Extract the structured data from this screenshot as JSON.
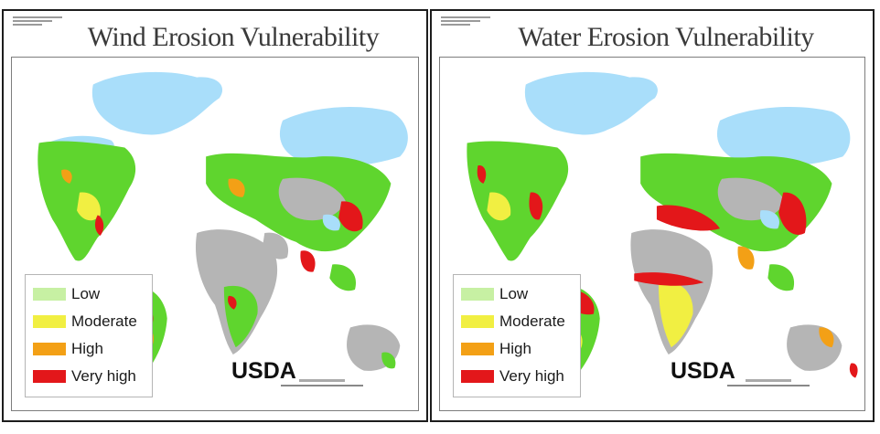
{
  "maps": [
    {
      "title": "Wind Erosion Vulnerability",
      "source": "USDA",
      "legend": [
        {
          "label": "Low",
          "color": "#c7f0a3"
        },
        {
          "label": "Moderate",
          "color": "#f1ef42"
        },
        {
          "label": "High",
          "color": "#f3a016"
        },
        {
          "label": "Very high",
          "color": "#e3171a"
        }
      ]
    },
    {
      "title": "Water Erosion Vulnerability",
      "source": "USDA",
      "legend": [
        {
          "label": "Low",
          "color": "#c7f0a3"
        },
        {
          "label": "Moderate",
          "color": "#f1ef42"
        },
        {
          "label": "High",
          "color": "#f3a016"
        },
        {
          "label": "Very high",
          "color": "#e3171a"
        }
      ]
    }
  ],
  "colors": {
    "ice": "#a9defa",
    "barren": "#b5b5b5",
    "vegetation": "#5fd52e",
    "border": "#1d1d1d"
  }
}
